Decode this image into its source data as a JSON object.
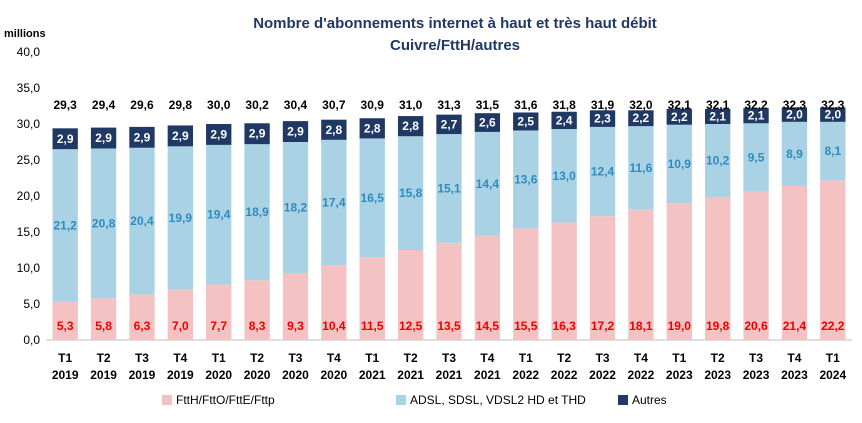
{
  "chart_data": {
    "type": "bar",
    "stacked": true,
    "title": "Nombre d'abonnements internet à haut et très haut débit",
    "subtitle": "Cuivre/FttH/autres",
    "unit_label": "millions",
    "ylim": [
      0,
      40
    ],
    "y_ticks": [
      "0,0",
      "5,0",
      "10,0",
      "15,0",
      "20,0",
      "25,0",
      "30,0",
      "35,0",
      "40,0"
    ],
    "grid": false,
    "legend_position": "bottom",
    "categories": [
      {
        "q": "T1",
        "y": "2019"
      },
      {
        "q": "T2",
        "y": "2019"
      },
      {
        "q": "T3",
        "y": "2019"
      },
      {
        "q": "T4",
        "y": "2019"
      },
      {
        "q": "T1",
        "y": "2020"
      },
      {
        "q": "T2",
        "y": "2020"
      },
      {
        "q": "T3",
        "y": "2020"
      },
      {
        "q": "T4",
        "y": "2020"
      },
      {
        "q": "T1",
        "y": "2021"
      },
      {
        "q": "T2",
        "y": "2021"
      },
      {
        "q": "T3",
        "y": "2021"
      },
      {
        "q": "T4",
        "y": "2021"
      },
      {
        "q": "T1",
        "y": "2022"
      },
      {
        "q": "T2",
        "y": "2022"
      },
      {
        "q": "T3",
        "y": "2022"
      },
      {
        "q": "T4",
        "y": "2022"
      },
      {
        "q": "T1",
        "y": "2023"
      },
      {
        "q": "T2",
        "y": "2023"
      },
      {
        "q": "T3",
        "y": "2023"
      },
      {
        "q": "T4",
        "y": "2023"
      },
      {
        "q": "T1",
        "y": "2024"
      }
    ],
    "series": [
      {
        "name": "FttH/FttO/FttE/Fttp",
        "color": "#f4c2c2",
        "label_color": "#ee0000",
        "values": [
          5.3,
          5.8,
          6.3,
          7.0,
          7.7,
          8.3,
          9.3,
          10.4,
          11.5,
          12.5,
          13.5,
          14.5,
          15.5,
          16.3,
          17.2,
          18.1,
          19.0,
          19.8,
          20.6,
          21.4,
          22.2
        ],
        "labels": [
          "5,3",
          "5,8",
          "6,3",
          "7,0",
          "7,7",
          "8,3",
          "9,3",
          "10,4",
          "11,5",
          "12,5",
          "13,5",
          "14,5",
          "15,5",
          "16,3",
          "17,2",
          "18,1",
          "19,0",
          "19,8",
          "20,6",
          "21,4",
          "22,2"
        ]
      },
      {
        "name": "ADSL, SDSL, VDSL2 HD et THD",
        "color": "#a9d3e4",
        "label_color": "#2e8bbf",
        "values": [
          21.2,
          20.8,
          20.4,
          19.9,
          19.4,
          18.9,
          18.2,
          17.4,
          16.5,
          15.8,
          15.1,
          14.4,
          13.6,
          13.0,
          12.4,
          11.6,
          10.9,
          10.2,
          9.5,
          8.9,
          8.1
        ],
        "labels": [
          "21,2",
          "20,8",
          "20,4",
          "19,9",
          "19,4",
          "18,9",
          "18,2",
          "17,4",
          "16,5",
          "15,8",
          "15,1",
          "14,4",
          "13,6",
          "13,0",
          "12,4",
          "11,6",
          "10,9",
          "10,2",
          "9,5",
          "8,9",
          "8,1"
        ]
      },
      {
        "name": "Autres",
        "color": "#1f3864",
        "label_color": "#ffffff",
        "values": [
          2.9,
          2.9,
          2.9,
          2.9,
          2.9,
          2.9,
          2.9,
          2.8,
          2.8,
          2.8,
          2.7,
          2.6,
          2.5,
          2.4,
          2.3,
          2.2,
          2.2,
          2.1,
          2.1,
          2.0,
          2.0
        ],
        "labels": [
          "2,9",
          "2,9",
          "2,9",
          "2,9",
          "2,9",
          "2,9",
          "2,9",
          "2,8",
          "2,8",
          "2,8",
          "2,7",
          "2,6",
          "2,5",
          "2,4",
          "2,3",
          "2,2",
          "2,2",
          "2,1",
          "2,1",
          "2,0",
          "2,0"
        ]
      }
    ],
    "totals": [
      29.3,
      29.4,
      29.6,
      29.8,
      30.0,
      30.2,
      30.4,
      30.7,
      30.9,
      31.0,
      31.3,
      31.5,
      31.6,
      31.8,
      31.9,
      32.0,
      32.1,
      32.1,
      32.2,
      32.3,
      32.3
    ],
    "total_labels": [
      "29,3",
      "29,4",
      "29,6",
      "29,8",
      "30,0",
      "30,2",
      "30,4",
      "30,7",
      "30,9",
      "31,0",
      "31,3",
      "31,5",
      "31,6",
      "31,8",
      "31,9",
      "32,0",
      "32,1",
      "32,1",
      "32,2",
      "32,3",
      "32,3"
    ]
  }
}
